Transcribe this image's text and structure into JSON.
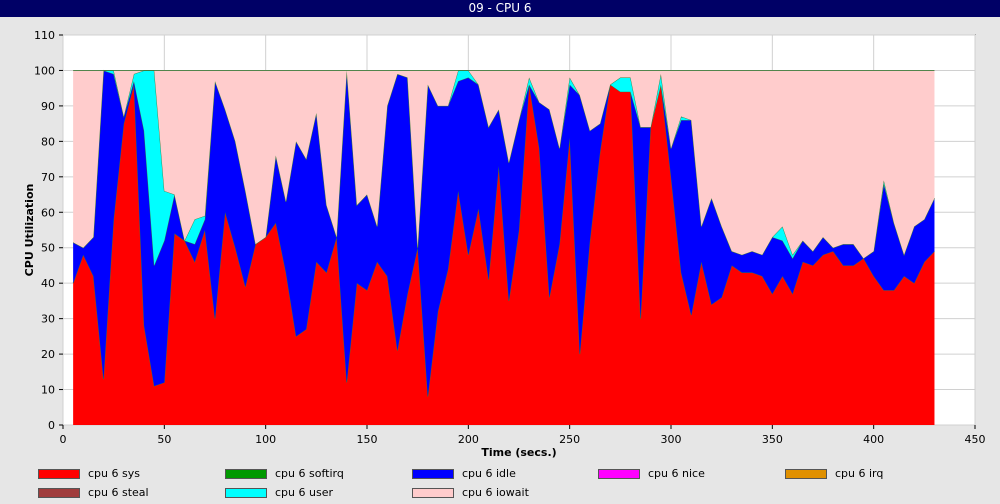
{
  "window": {
    "title": "09 - CPU 6"
  },
  "chart_data": {
    "type": "area",
    "stacked": true,
    "title": "09 - CPU 6",
    "xlabel": "Time (secs.)",
    "ylabel": "CPU Utilization",
    "xlim": [
      0,
      450
    ],
    "ylim": [
      0,
      110
    ],
    "xticks": [
      0,
      50,
      100,
      150,
      200,
      250,
      300,
      350,
      400,
      450
    ],
    "yticks": [
      0,
      10,
      20,
      30,
      40,
      50,
      60,
      70,
      80,
      90,
      100,
      110
    ],
    "grid": true,
    "legend_position": "bottom",
    "x": [
      5,
      10,
      15,
      20,
      25,
      30,
      35,
      40,
      45,
      50,
      55,
      60,
      65,
      70,
      75,
      80,
      85,
      90,
      95,
      100,
      105,
      110,
      115,
      120,
      125,
      130,
      135,
      140,
      145,
      150,
      155,
      160,
      165,
      170,
      175,
      180,
      185,
      190,
      195,
      200,
      205,
      210,
      215,
      220,
      225,
      230,
      235,
      240,
      245,
      250,
      255,
      260,
      265,
      270,
      275,
      280,
      285,
      290,
      295,
      300,
      305,
      310,
      315,
      320,
      325,
      330,
      335,
      340,
      345,
      350,
      355,
      360,
      365,
      370,
      375,
      380,
      385,
      390,
      395,
      400,
      405,
      410,
      415,
      420,
      425,
      430
    ],
    "series": [
      {
        "name": "cpu 6 sys",
        "color": "#ff0000",
        "values": [
          40,
          48,
          42,
          13,
          58,
          85,
          96,
          28,
          11,
          12,
          54,
          52,
          46,
          55,
          30,
          60,
          50,
          39,
          51,
          53,
          57,
          43,
          25,
          27,
          46,
          43,
          53,
          12,
          40,
          38,
          46,
          42,
          21,
          37,
          50,
          8,
          32,
          44,
          66,
          48,
          61,
          41,
          73,
          35,
          55,
          96,
          78,
          36,
          51,
          81,
          20,
          52,
          77,
          96,
          96,
          95,
          30,
          85,
          96,
          70,
          43,
          31,
          46,
          34,
          36,
          45,
          43,
          43,
          42,
          37,
          42,
          37,
          46,
          45,
          48,
          49,
          45,
          45,
          47,
          42,
          38,
          38,
          42,
          40,
          46,
          49
        ]
      },
      {
        "name": "cpu 6 softirq",
        "color": "#009900",
        "values": [
          0,
          0,
          0,
          0,
          0,
          0,
          0,
          0,
          0,
          0,
          0,
          0,
          0,
          0,
          0,
          0,
          0,
          0,
          0,
          0,
          0,
          0,
          0,
          0,
          0,
          0,
          0,
          0,
          0,
          0,
          0,
          0,
          0,
          0,
          0,
          0,
          0,
          0,
          0,
          0,
          0,
          0,
          0,
          0,
          0,
          0,
          0,
          0,
          0,
          0,
          0,
          0,
          0,
          0,
          0,
          0,
          0,
          0,
          0,
          0,
          0,
          0,
          0,
          0,
          0,
          0,
          0,
          0,
          0,
          0,
          0,
          0,
          0,
          0,
          0,
          0,
          0,
          0,
          0,
          0,
          0,
          0,
          0,
          0,
          0,
          0
        ]
      },
      {
        "name": "cpu 6 idle",
        "color": "#0000ff",
        "values": [
          11.5,
          2,
          11,
          87,
          41,
          2,
          1,
          55,
          34,
          40,
          11,
          0,
          5,
          3,
          67,
          29,
          30,
          27,
          0,
          0,
          19,
          20,
          55,
          48,
          42,
          19,
          0,
          88,
          22,
          27,
          10,
          48,
          78,
          61,
          0,
          88,
          58,
          46,
          31,
          50,
          35,
          43,
          16,
          39,
          31,
          0,
          13,
          53,
          27,
          15,
          73,
          31,
          8,
          0,
          -2,
          -1,
          54,
          -1,
          0,
          8,
          43,
          55,
          10,
          30,
          20,
          4,
          5,
          6,
          6,
          16,
          10,
          10,
          6,
          4,
          5,
          1,
          6,
          6,
          0,
          7,
          30,
          19,
          6,
          16,
          12,
          15
        ]
      },
      {
        "name": "cpu 6 nice",
        "color": "#ff00ff",
        "values": [
          0,
          0,
          0,
          0,
          0,
          0,
          0,
          0,
          0,
          0,
          0,
          0,
          0,
          0,
          0,
          0,
          0,
          0,
          0,
          0,
          0,
          0,
          0,
          0,
          0,
          0,
          0,
          0,
          0,
          0,
          0,
          0,
          0,
          0,
          0,
          0,
          0,
          0,
          0,
          0,
          0,
          0,
          0,
          0,
          0,
          0,
          0,
          0,
          0,
          0,
          0,
          0,
          0,
          0,
          0,
          0,
          0,
          0,
          0,
          0,
          0,
          0,
          0,
          0,
          0,
          0,
          0,
          0,
          0,
          0,
          0,
          0,
          0,
          0,
          0,
          0,
          0,
          0,
          0,
          0,
          0,
          0,
          0,
          0,
          0,
          0
        ]
      },
      {
        "name": "cpu 6 irq",
        "color": "#e09000",
        "values": [
          0,
          0,
          0,
          0,
          0,
          0,
          0,
          0,
          0,
          0,
          0,
          0,
          0,
          0,
          0,
          0,
          0,
          0,
          0,
          0,
          0,
          0,
          0,
          0,
          0,
          0,
          0,
          0,
          0,
          0,
          0,
          0,
          0,
          0,
          0,
          0,
          0,
          0,
          0,
          0,
          0,
          0,
          0,
          0,
          0,
          0,
          0,
          0,
          0,
          0,
          0,
          0,
          0,
          0,
          0,
          0,
          0,
          0,
          0,
          0,
          0,
          0,
          0,
          0,
          0,
          0,
          0,
          0,
          0,
          0,
          0,
          0,
          0,
          0,
          0,
          0,
          0,
          0,
          0,
          0,
          0,
          0,
          0,
          0,
          0,
          0
        ]
      },
      {
        "name": "cpu 6 steal",
        "color": "#a03c3c",
        "values": [
          0,
          0,
          0,
          0,
          0,
          0,
          0,
          0,
          0,
          0,
          0,
          0,
          0,
          0,
          0,
          0,
          0,
          0,
          0,
          0,
          0,
          0,
          0,
          0,
          0,
          0,
          0,
          0,
          0,
          0,
          0,
          0,
          0,
          0,
          0,
          0,
          0,
          0,
          0,
          0,
          0,
          0,
          0,
          0,
          0,
          0,
          0,
          0,
          0,
          0,
          0,
          0,
          0,
          0,
          0,
          0,
          0,
          0,
          0,
          0,
          0,
          0,
          0,
          0,
          0,
          0,
          0,
          0,
          0,
          0,
          0,
          0,
          0,
          0,
          0,
          0,
          0,
          0,
          0,
          0,
          0,
          0,
          0,
          0,
          0,
          0
        ]
      },
      {
        "name": "cpu 6 user",
        "color": "#00ffff",
        "values": [
          0,
          0,
          0,
          0,
          1,
          0,
          2,
          17,
          55,
          14,
          0,
          0,
          7,
          1,
          0,
          0,
          0,
          0,
          0,
          0,
          0,
          0,
          0,
          0,
          0,
          0,
          0,
          0,
          0,
          0,
          0,
          0,
          0,
          0,
          0,
          0,
          0,
          0,
          3,
          2,
          0,
          0,
          0,
          0,
          0,
          2,
          0,
          0,
          0,
          2,
          0,
          0,
          0,
          0,
          4,
          4,
          0,
          0,
          3,
          0,
          1,
          0,
          0,
          0,
          0,
          0,
          0,
          0,
          0,
          0,
          4,
          1,
          0,
          0,
          0,
          0,
          0,
          0,
          0,
          0,
          1,
          0,
          0,
          0,
          0,
          0
        ]
      },
      {
        "name": "cpu 6 iowait",
        "color": "#ffcccc",
        "values": [
          48.5,
          50,
          47,
          0,
          0,
          13,
          1,
          0,
          0,
          34,
          35,
          48,
          42,
          41,
          3,
          11,
          20,
          34,
          49,
          47,
          24,
          37,
          20,
          25,
          12,
          38,
          47,
          0,
          38,
          35,
          44,
          10,
          1,
          2,
          50,
          4,
          10,
          10,
          0,
          0,
          4,
          16,
          11,
          26,
          14,
          2,
          9,
          11,
          22,
          2,
          7,
          17,
          15,
          4,
          2,
          2,
          16,
          16,
          1,
          22,
          13,
          14,
          44,
          36,
          44,
          51,
          52,
          51,
          52,
          47,
          44,
          52,
          48,
          51,
          47,
          50,
          49,
          49,
          53,
          51,
          31,
          43,
          52,
          44,
          42,
          36
        ]
      }
    ]
  }
}
